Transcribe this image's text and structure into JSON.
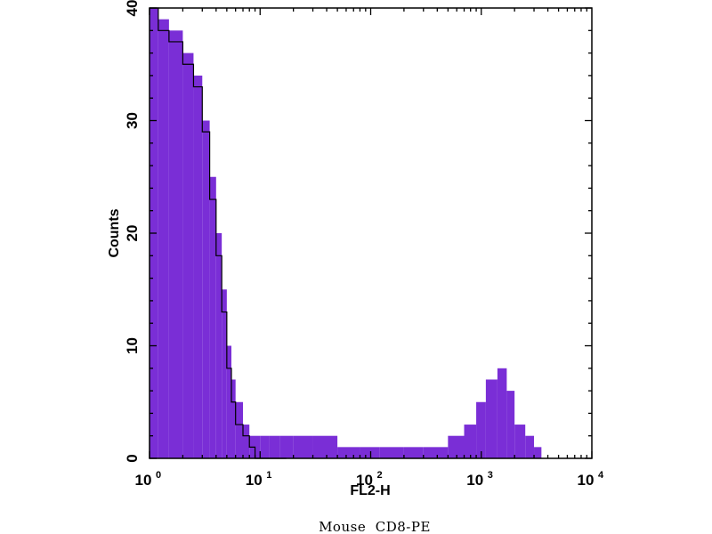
{
  "chart_data": {
    "type": "histogram",
    "caption": "Mouse  CD8-PE",
    "xlabel": "FL2-H",
    "ylabel": "Counts",
    "x_scale": "log",
    "xlim": [
      1,
      10000
    ],
    "ylim": [
      0,
      40
    ],
    "x_ticks": [
      {
        "base": "10",
        "exp": "0",
        "value": 1
      },
      {
        "base": "10",
        "exp": "1",
        "value": 10
      },
      {
        "base": "10",
        "exp": "2",
        "value": 100
      },
      {
        "base": "10",
        "exp": "3",
        "value": 1000
      },
      {
        "base": "10",
        "exp": "4",
        "value": 10000
      }
    ],
    "y_ticks": [
      "0",
      "10",
      "20",
      "30",
      "40"
    ],
    "grid": false,
    "series": [
      {
        "style": "filled",
        "color": "#7a2ed6",
        "x": [
          1.0,
          1.2,
          1.5,
          2.0,
          2.5,
          3.0,
          3.5,
          4.0,
          4.5,
          5.0,
          5.5,
          6.0,
          7.0,
          8.0,
          10,
          12,
          15,
          20,
          30,
          50,
          80,
          120,
          200,
          300,
          500,
          700,
          900,
          1100,
          1400,
          1700,
          2000,
          2500,
          3000,
          3500,
          4000
        ],
        "y": [
          40,
          39,
          38,
          36,
          34,
          30,
          25,
          20,
          15,
          10,
          7,
          5,
          3,
          2,
          2,
          2,
          2,
          2,
          2,
          1,
          1,
          1,
          1,
          1,
          2,
          3,
          5,
          7,
          8,
          6,
          3,
          2,
          1,
          0,
          0
        ]
      },
      {
        "style": "outline",
        "color": "#000000",
        "x": [
          1.0,
          1.2,
          1.5,
          2.0,
          2.5,
          3.0,
          3.5,
          4.0,
          4.5,
          5.0,
          5.5,
          6.0,
          7.0,
          8.0,
          9.0,
          10,
          12,
          15
        ],
        "y": [
          40,
          38,
          37,
          35,
          33,
          29,
          23,
          18,
          13,
          8,
          5,
          3,
          2,
          1,
          0,
          0,
          0,
          0
        ]
      }
    ]
  }
}
